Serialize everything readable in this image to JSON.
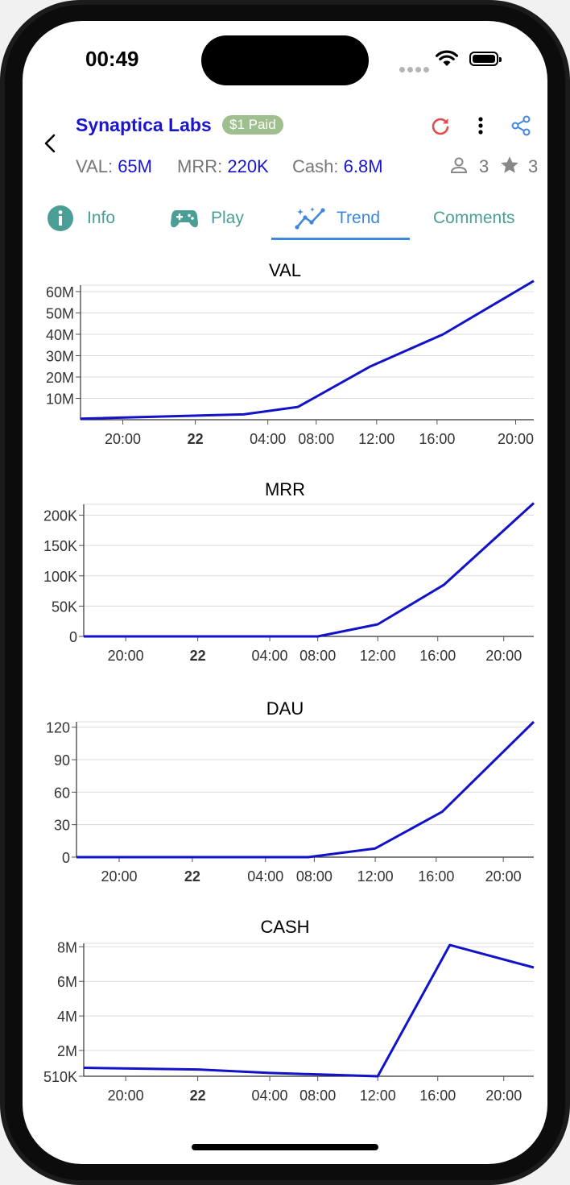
{
  "status_bar": {
    "time": "00:49"
  },
  "header": {
    "company": "Synaptica Labs",
    "badge": "$1 Paid",
    "metrics": [
      {
        "label": "VAL:",
        "value": "65M"
      },
      {
        "label": "MRR:",
        "value": "220K"
      },
      {
        "label": "Cash:",
        "value": "6.8M"
      }
    ],
    "members_count": "3",
    "stars_count": "3",
    "colors": {
      "link": "#1a16d0",
      "refresh": "#e24c4b",
      "share": "#3f87d9",
      "badge": "#9fbf8e"
    }
  },
  "tabs": [
    {
      "label": "Info",
      "icon": "info-icon"
    },
    {
      "label": "Play",
      "icon": "gamepad-icon"
    },
    {
      "label": "Trend",
      "icon": "trend-icon",
      "active": true
    },
    {
      "label": "Comments"
    }
  ],
  "chart_data": [
    {
      "type": "line",
      "title": "VAL",
      "x_ticks": [
        "20:00",
        "22",
        "04:00",
        "08:00",
        "12:00",
        "16:00",
        "20:00"
      ],
      "x_hours": [
        0,
        6,
        12,
        16,
        21,
        26,
        32.5
      ],
      "x_range": [
        -3.5,
        34
      ],
      "y_ticks": [
        "10M",
        "20M",
        "30M",
        "40M",
        "50M",
        "60M"
      ],
      "y_tick_values": [
        10000000,
        20000000,
        30000000,
        40000000,
        50000000,
        60000000
      ],
      "ylim": [
        0,
        63000000
      ],
      "x": [
        -3.5,
        10,
        14.5,
        20.5,
        26.5,
        34
      ],
      "y": [
        500000,
        2500000,
        6000000,
        25000000,
        40000000,
        65000000
      ]
    },
    {
      "type": "line",
      "title": "MRR",
      "x_ticks": [
        "20:00",
        "22",
        "04:00",
        "08:00",
        "12:00",
        "16:00",
        "20:00"
      ],
      "x_hours": [
        0,
        6,
        12,
        16,
        21,
        26,
        31.5
      ],
      "x_range": [
        -3.5,
        34
      ],
      "y_ticks": [
        "0",
        "50K",
        "100K",
        "150K",
        "200K"
      ],
      "y_tick_values": [
        0,
        50000,
        100000,
        150000,
        200000
      ],
      "ylim": [
        0,
        218000
      ],
      "x": [
        -3.5,
        16,
        21,
        26.5,
        34
      ],
      "y": [
        0,
        0,
        20000,
        85000,
        220000
      ]
    },
    {
      "type": "line",
      "title": "DAU",
      "x_ticks": [
        "20:00",
        "22",
        "04:00",
        "08:00",
        "12:00",
        "16:00",
        "20:00"
      ],
      "x_hours": [
        0,
        6,
        12,
        16,
        21,
        26,
        31.5
      ],
      "x_range": [
        -3.5,
        34
      ],
      "y_ticks": [
        "0",
        "30",
        "60",
        "90",
        "120"
      ],
      "y_tick_values": [
        0,
        30,
        60,
        90,
        120
      ],
      "ylim": [
        0,
        125
      ],
      "x": [
        -3.5,
        15.5,
        21,
        26.5,
        34
      ],
      "y": [
        0,
        0,
        8,
        42,
        125
      ]
    },
    {
      "type": "line",
      "title": "CASH",
      "x_ticks": [
        "20:00",
        "22",
        "04:00",
        "08:00",
        "12:00",
        "16:00",
        "20:00"
      ],
      "x_hours": [
        0,
        6,
        12,
        16,
        21,
        26,
        31.5
      ],
      "x_range": [
        -3.5,
        34
      ],
      "y_ticks": [
        "510K",
        "2M",
        "4M",
        "6M",
        "8M"
      ],
      "y_tick_values": [
        510000,
        2000000,
        4000000,
        6000000,
        8000000
      ],
      "ylim": [
        510000,
        8200000
      ],
      "x": [
        -3.5,
        6,
        12,
        21,
        27,
        34
      ],
      "y": [
        1000000,
        900000,
        700000,
        510000,
        8100000,
        6800000
      ]
    }
  ]
}
